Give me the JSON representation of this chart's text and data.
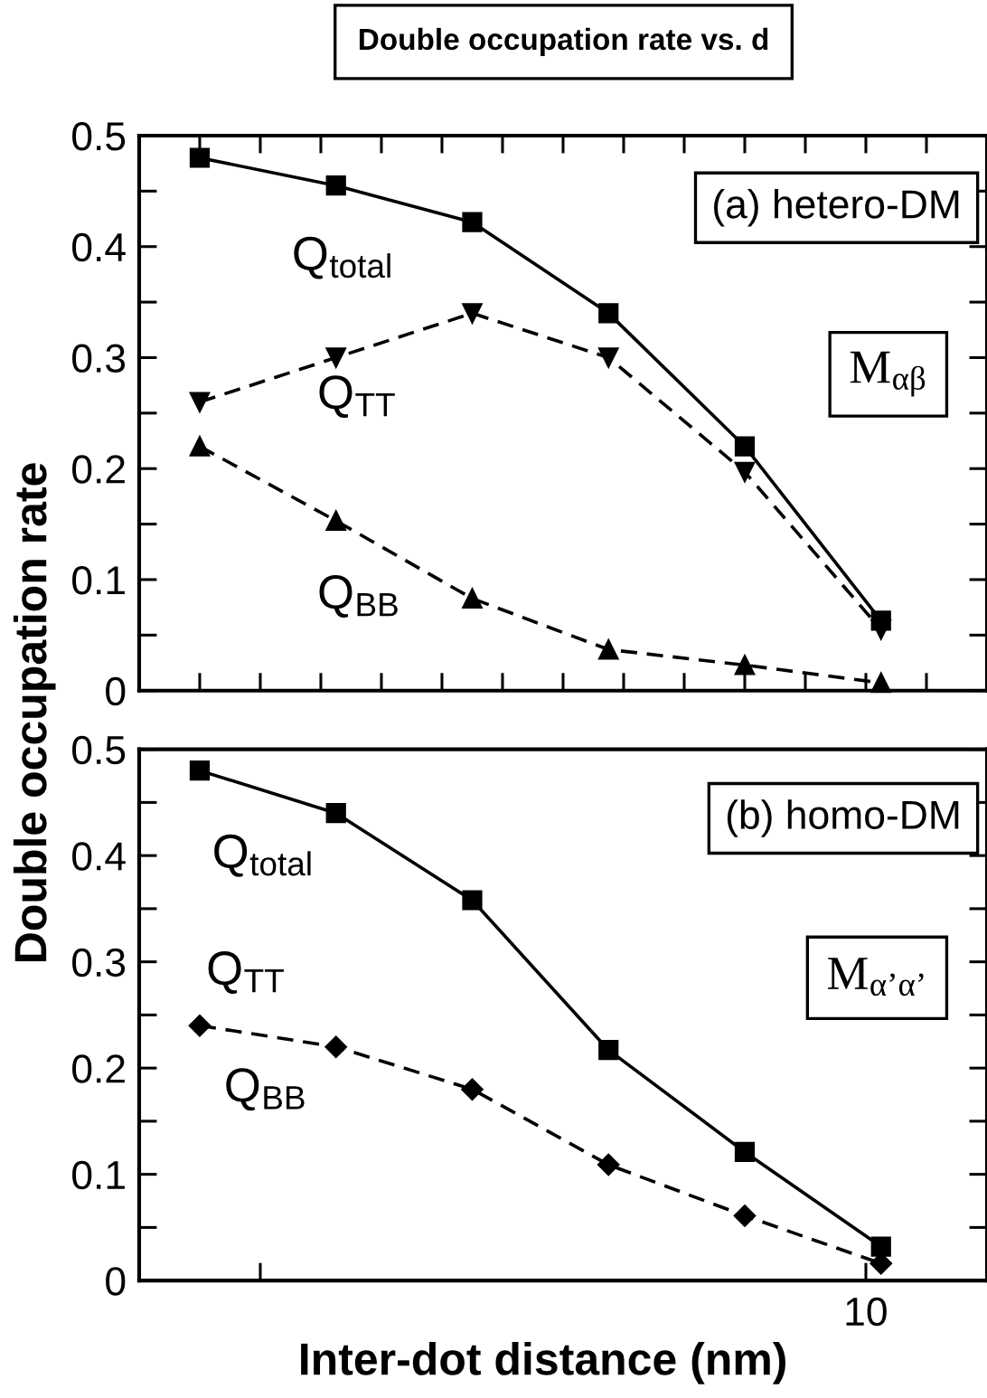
{
  "chart_data": [
    {
      "type": "line",
      "title": "Double occupation rate vs. d",
      "ylabel": "Double occupation rate",
      "categories": [
        null,
        null,
        null,
        null,
        null,
        null
      ],
      "series": [
        {
          "color": "#000000",
          "marker": "square",
          "line_style": "solid",
          "values": [
            0.48,
            0.455,
            0.422,
            0.34,
            0.22,
            0.063
          ]
        },
        {
          "color": "#000000",
          "marker": "triangle_down",
          "line_style": "dashed",
          "values": [
            0.26,
            0.3,
            0.34,
            0.3,
            0.197,
            0.055
          ]
        },
        {
          "color": "#000000",
          "marker": "triangle",
          "line_style": "dashed",
          "values": [
            0.22,
            0.153,
            0.083,
            0.037,
            0.023,
            0.007
          ]
        }
      ],
      "ylim": [
        0,
        0.5
      ],
      "yticks": [
        0,
        0.1,
        0.2,
        0.3,
        0.4,
        0.5
      ],
      "annotations": [
        "Q$_{total}$",
        "Q$_{TT}$",
        "Q$_{BB}$",
        "(a) hetero-DM",
        "M$_{αβ}$"
      ]
    },
    {
      "type": "line",
      "xlabel": "Inter-dot distance (nm)",
      "categories": [
        null,
        null,
        null,
        null,
        null,
        null
      ],
      "series": [
        {
          "color": "#000000",
          "marker": "square",
          "line_style": "solid",
          "values": [
            0.48,
            0.44,
            0.358,
            0.217,
            0.121,
            0.032
          ]
        },
        {
          "color": "#000000",
          "marker": "diamond",
          "line_style": "dashed",
          "values": [
            0.24,
            0.22,
            0.18,
            0.109,
            0.061,
            0.016
          ]
        }
      ],
      "ylim": [
        0,
        0.5
      ],
      "yticks": [
        0,
        0.1,
        0.2,
        0.3,
        0.4,
        0.5
      ],
      "annotations": [
        "Q$_{total}$",
        "Q$_{TT}$",
        "Q$_{BB}$",
        "(b) homo-DM",
        "M$_{α’α’}$",
        "10"
      ]
    }
  ]
}
